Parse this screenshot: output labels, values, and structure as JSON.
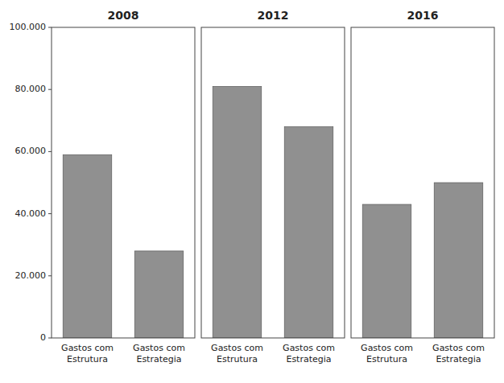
{
  "chart_data": [
    {
      "type": "bar",
      "title": "2008",
      "categories": [
        "Gastos com\nEstrutura",
        "Gastos com\nEstrategia"
      ],
      "values": [
        59000,
        28000
      ],
      "color": "#909090",
      "ylim": [
        0,
        100000
      ],
      "yticks": [
        0,
        {
          "value": 20000,
          "label": "20.000"
        },
        {
          "value": 40000,
          "label": "40.000"
        },
        {
          "value": 60000,
          "label": "60.000"
        },
        {
          "value": 80000,
          "label": "80.000"
        },
        {
          "value": 100000,
          "label": "100.000"
        }
      ]
    },
    {
      "type": "bar",
      "title": "2012",
      "categories": [
        "Gastos com\nEstrutura",
        "Gastos com\nEstrategia"
      ],
      "values": [
        81000,
        68000
      ],
      "color": "#909090",
      "ylim": [
        0,
        100000
      ],
      "tick_labels": "x"
    },
    {
      "type": "bar",
      "title": "2016",
      "categories": [
        "Gastos com\nEstrutura",
        "Gastos com\nEstrategia"
      ],
      "values": [
        43000,
        50000
      ],
      "color": "#909090",
      "ylim": [
        0,
        100000
      ],
      "tick_labels": "x"
    }
  ]
}
